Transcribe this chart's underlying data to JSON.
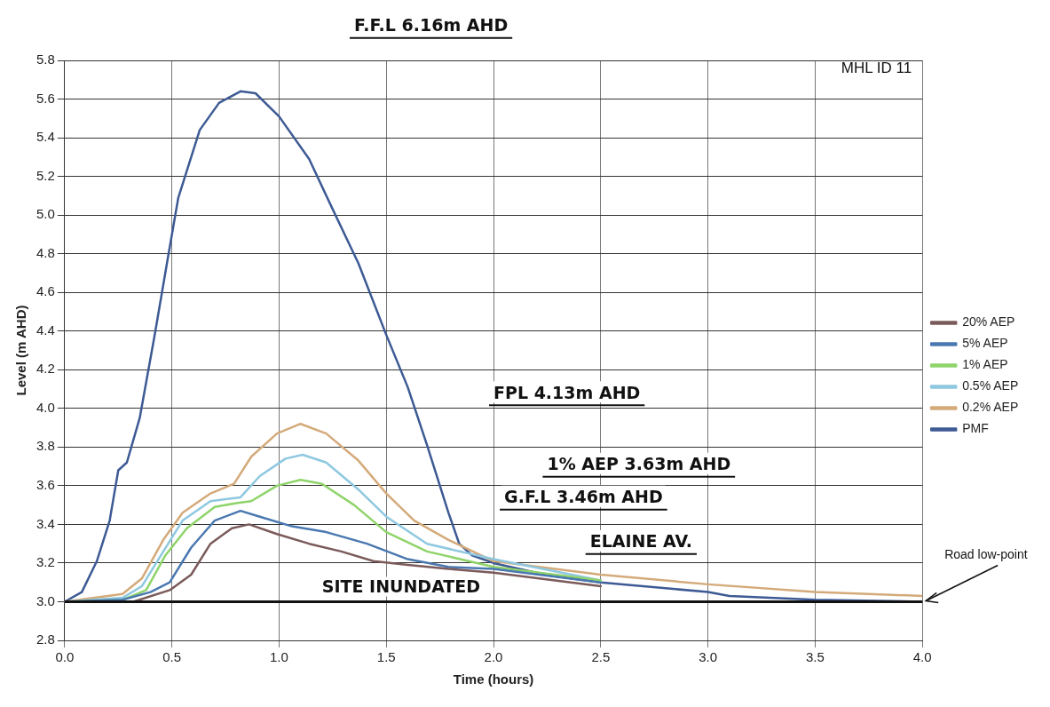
{
  "chart_data": {
    "type": "line",
    "xlabel": "Time (hours)",
    "ylabel": "Level (m AHD)",
    "xlim": [
      0,
      4
    ],
    "xticks": [
      {
        "value": 0,
        "label": "0.0"
      },
      {
        "value": 0.5,
        "label": "0.5"
      },
      {
        "value": 1,
        "label": "1.0"
      },
      {
        "value": 1.5,
        "label": "1.5"
      },
      {
        "value": 2,
        "label": "2.0"
      },
      {
        "value": 2.5,
        "label": "2.5"
      },
      {
        "value": 3,
        "label": "3.0"
      },
      {
        "value": 3.5,
        "label": "3.5"
      },
      {
        "value": 4,
        "label": "4.0"
      }
    ],
    "ylim": [
      2.8,
      5.8
    ],
    "yticks": [
      2.8,
      {
        "value": 3,
        "label": "3.0"
      },
      3.2,
      3.4,
      3.6,
      3.8,
      {
        "value": 4,
        "label": "4.0"
      },
      4.2,
      4.4,
      4.6,
      4.8,
      {
        "value": 5,
        "label": "5.0"
      },
      5.2,
      5.4,
      5.6,
      5.8
    ],
    "grid": true,
    "legend": "right",
    "marker": "none",
    "line_style": "solid",
    "series": [
      {
        "name": "20% AEP",
        "color": "#7b5a5a",
        "x": [
          0,
          0.32,
          0.49,
          0.59,
          0.68,
          0.78,
          0.86,
          0.99,
          1.14,
          1.29,
          1.44,
          1.6,
          1.79,
          2.0,
          2.5
        ],
        "values": [
          3.0,
          3.0,
          3.06,
          3.14,
          3.3,
          3.38,
          3.4,
          3.35,
          3.3,
          3.26,
          3.21,
          3.19,
          3.17,
          3.15,
          3.08
        ]
      },
      {
        "name": "5% AEP",
        "color": "#4a78b0",
        "x": [
          0,
          0.27,
          0.4,
          0.49,
          0.59,
          0.7,
          0.82,
          0.91,
          1.06,
          1.22,
          1.41,
          1.6,
          1.79,
          2.0,
          2.5
        ],
        "values": [
          3.0,
          3.01,
          3.05,
          3.1,
          3.28,
          3.42,
          3.47,
          3.44,
          3.39,
          3.36,
          3.3,
          3.22,
          3.18,
          3.17,
          3.1
        ]
      },
      {
        "name": "1% AEP",
        "color": "#8fd46a",
        "x": [
          0,
          0.27,
          0.38,
          0.47,
          0.57,
          0.7,
          0.8,
          0.87,
          0.99,
          1.1,
          1.2,
          1.35,
          1.5,
          1.69,
          2.0,
          2.5
        ],
        "values": [
          3.0,
          3.01,
          3.06,
          3.24,
          3.38,
          3.49,
          3.51,
          3.52,
          3.6,
          3.63,
          3.61,
          3.5,
          3.36,
          3.26,
          3.18,
          3.11
        ]
      },
      {
        "name": "0.5% AEP",
        "color": "#8ec8e0",
        "x": [
          0,
          0.27,
          0.36,
          0.46,
          0.55,
          0.68,
          0.82,
          0.91,
          1.03,
          1.11,
          1.22,
          1.37,
          1.5,
          1.69,
          2.0,
          2.5
        ],
        "values": [
          3.0,
          3.02,
          3.08,
          3.26,
          3.42,
          3.52,
          3.54,
          3.65,
          3.74,
          3.76,
          3.72,
          3.58,
          3.44,
          3.3,
          3.22,
          3.11
        ]
      },
      {
        "name": "0.2% AEP",
        "color": "#d4aa7a",
        "x": [
          0,
          0.27,
          0.36,
          0.46,
          0.55,
          0.68,
          0.79,
          0.87,
          0.99,
          1.1,
          1.22,
          1.37,
          1.5,
          1.63,
          1.79,
          2.0,
          2.5,
          3.0,
          3.5,
          4.0
        ],
        "values": [
          3.0,
          3.04,
          3.12,
          3.32,
          3.46,
          3.56,
          3.61,
          3.75,
          3.87,
          3.92,
          3.87,
          3.73,
          3.56,
          3.42,
          3.32,
          3.21,
          3.14,
          3.09,
          3.05,
          3.03
        ]
      },
      {
        "name": "PMF",
        "color": "#3d5a94",
        "x": [
          0,
          0.08,
          0.15,
          0.21,
          0.25,
          0.29,
          0.35,
          0.42,
          0.48,
          0.53,
          0.63,
          0.72,
          0.82,
          0.89,
          1.0,
          1.14,
          1.25,
          1.37,
          1.5,
          1.6,
          1.69,
          1.73,
          1.79,
          1.84,
          1.9,
          2.0,
          2.24,
          2.5,
          3.0,
          3.1,
          3.5,
          4.0
        ],
        "values": [
          3.0,
          3.05,
          3.21,
          3.42,
          3.68,
          3.72,
          3.95,
          4.38,
          4.77,
          5.09,
          5.44,
          5.58,
          5.64,
          5.63,
          5.51,
          5.29,
          5.03,
          4.75,
          4.38,
          4.11,
          3.81,
          3.67,
          3.46,
          3.3,
          3.24,
          3.2,
          3.14,
          3.1,
          3.05,
          3.03,
          3.01,
          3.0
        ]
      }
    ],
    "ref_lines": [
      {
        "axis": "y",
        "value": 3.0,
        "label": "SITE INUNDATED",
        "color": "#111111"
      }
    ],
    "annotations": [
      "F.F.L 6.16m AHD",
      "MHL ID 11",
      "FPL 4.13m AHD",
      "1% AEP 3.63m AHD",
      "G.F.L 3.46m AHD",
      "ELAINE AV.",
      {
        "text": "Road low-point",
        "x": 4.0,
        "y": 3.0
      }
    ]
  }
}
